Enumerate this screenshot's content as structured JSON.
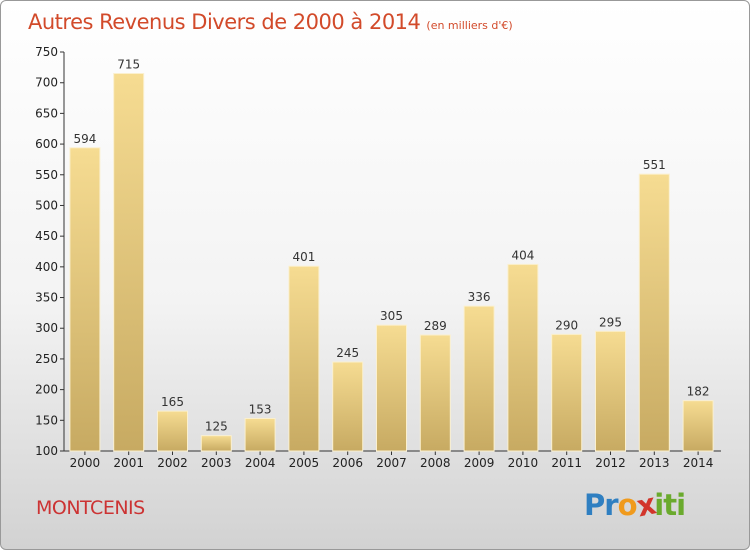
{
  "chart_data": {
    "type": "bar",
    "title": "Autres Revenus Divers de 2000 à 2014",
    "subtitle": "(en milliers d'€)",
    "categories": [
      "2000",
      "2001",
      "2002",
      "2003",
      "2004",
      "2005",
      "2006",
      "2007",
      "2008",
      "2009",
      "2010",
      "2011",
      "2012",
      "2013",
      "2014"
    ],
    "values": [
      594,
      715,
      165,
      125,
      153,
      401,
      245,
      305,
      289,
      336,
      404,
      290,
      295,
      551,
      182
    ],
    "ylim": [
      100,
      750
    ],
    "yticks": [
      100,
      150,
      200,
      250,
      300,
      350,
      400,
      450,
      500,
      550,
      600,
      650,
      700,
      750
    ],
    "grid": false,
    "bar_color": "#f0d27c"
  },
  "place": "MONTCENIS",
  "logo": {
    "letters": [
      "P",
      "r",
      "o",
      "x",
      "i",
      "t",
      "i"
    ],
    "colors": [
      "#2f7fc1",
      "#2f7fc1",
      "#f09a1c",
      "#d2352b",
      "#6aaa2d",
      "#6aaa2d",
      "#6aaa2d"
    ]
  }
}
